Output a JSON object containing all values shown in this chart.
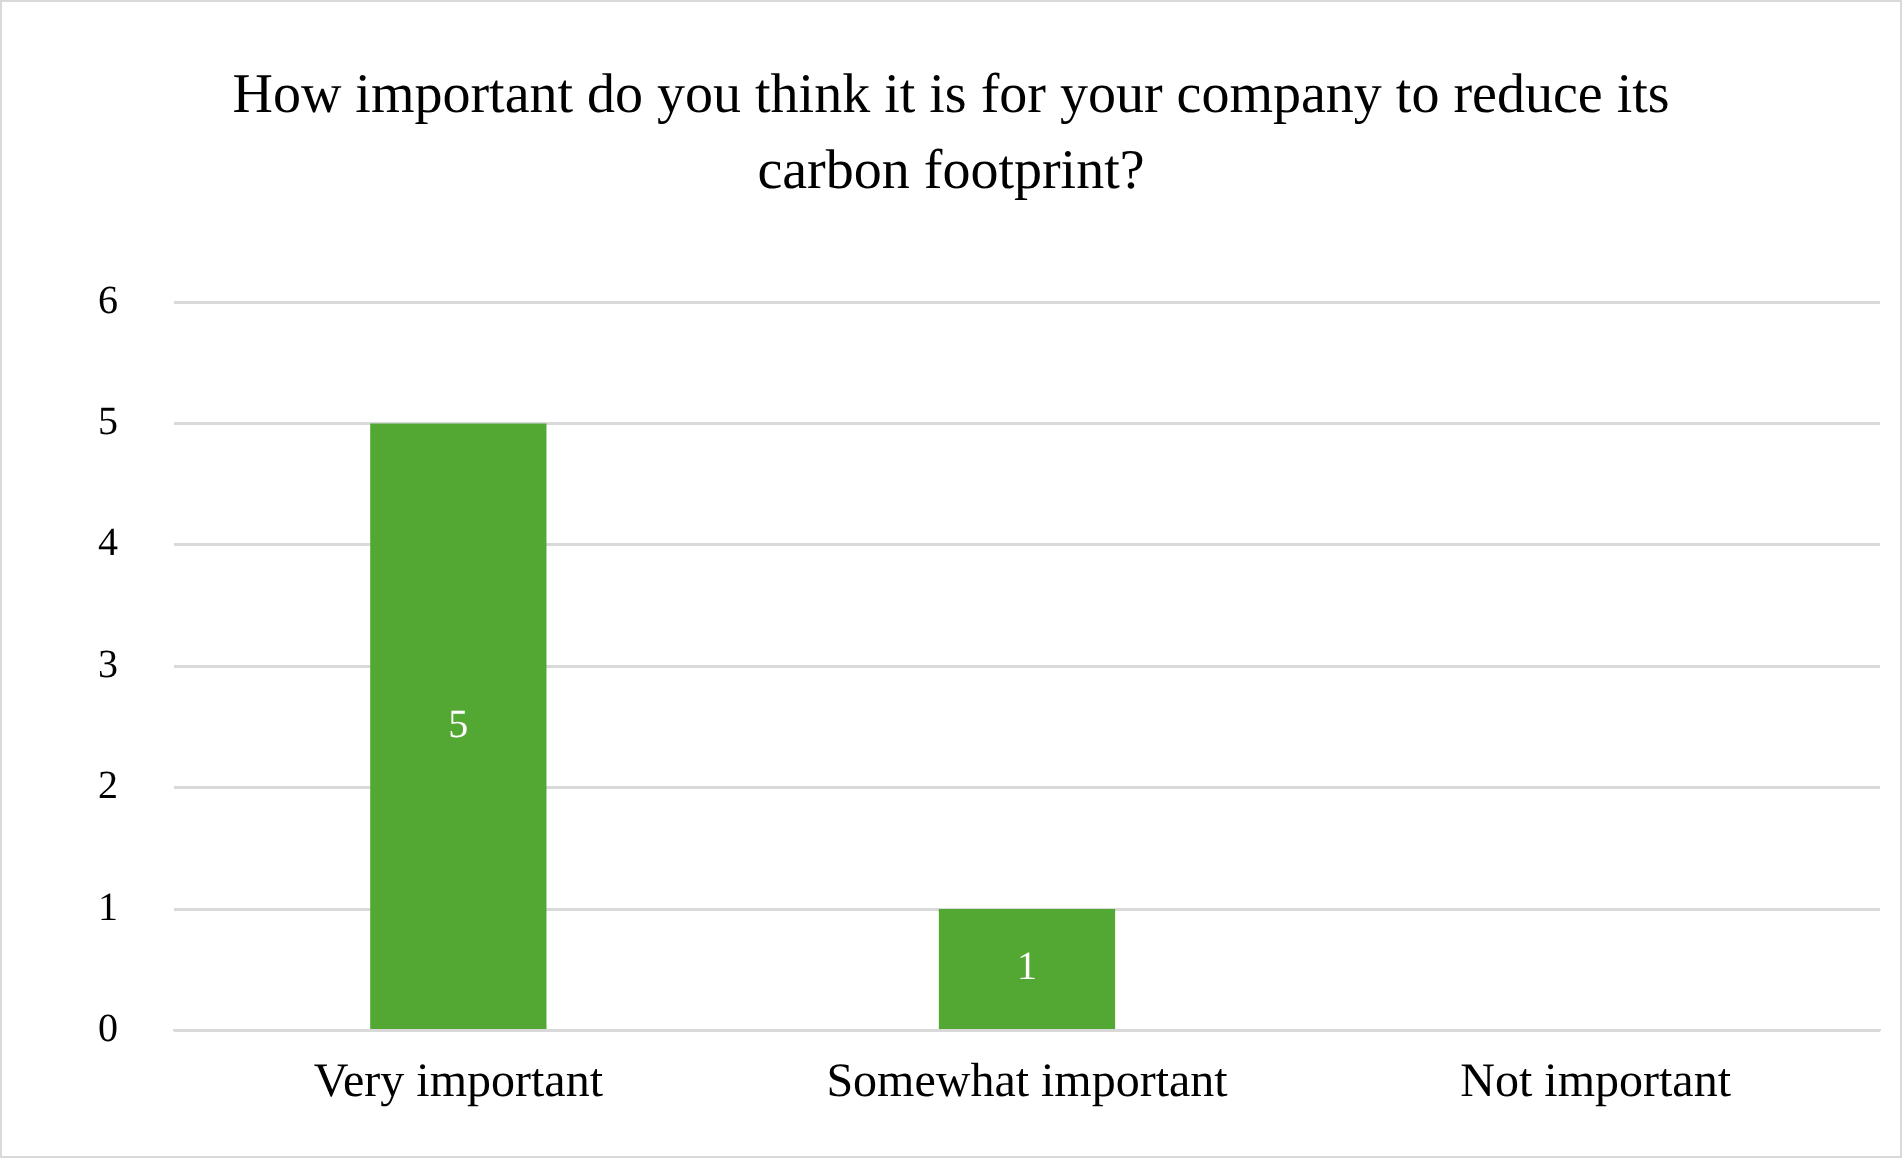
{
  "chart_data": {
    "type": "bar",
    "title": "How important do you think it is for your company to reduce its carbon footprint?",
    "categories": [
      "Very important",
      "Somewhat important",
      "Not important"
    ],
    "values": [
      5,
      1,
      0
    ],
    "value_labels": [
      "5",
      "1",
      null
    ],
    "color": "#53a833",
    "ylim": [
      0,
      6
    ],
    "yticks": [
      0,
      1,
      2,
      3,
      4,
      5,
      6
    ],
    "grid": "y"
  }
}
